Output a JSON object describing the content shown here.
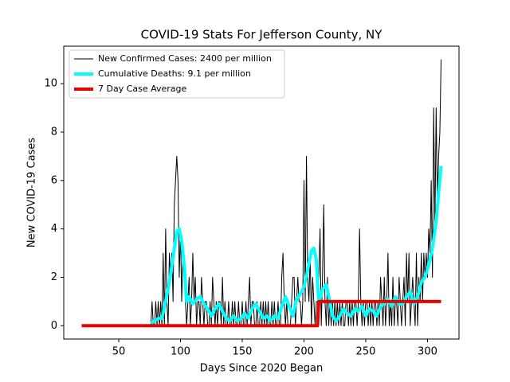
{
  "chart_data": {
    "type": "line",
    "title": "COVID-19 Stats For Jefferson County, NY",
    "x_label": "Days Since 2020 Began",
    "y_label": "New COVID-19 Cases",
    "xlim": [
      5.5,
      325.5
    ],
    "ylim": [
      -0.55,
      11.55
    ],
    "xticks": [
      50,
      100,
      150,
      200,
      250,
      300
    ],
    "yticks": [
      0,
      2,
      4,
      6,
      8,
      10
    ],
    "legend": "upper left",
    "series": [
      {
        "name": "New Confirmed Cases: 2400 per million",
        "color": "#000000",
        "width": 1,
        "x": [
          76,
          77,
          78,
          79,
          80,
          81,
          82,
          83,
          84,
          85,
          86,
          87,
          88,
          89,
          90,
          91,
          92,
          93,
          94,
          95,
          96,
          97,
          98,
          99,
          100,
          101,
          102,
          103,
          104,
          105,
          106,
          107,
          108,
          109,
          110,
          111,
          112,
          113,
          114,
          115,
          116,
          117,
          118,
          119,
          120,
          121,
          122,
          123,
          124,
          125,
          126,
          127,
          128,
          129,
          130,
          131,
          132,
          133,
          134,
          135,
          136,
          137,
          138,
          139,
          140,
          141,
          142,
          143,
          144,
          145,
          146,
          147,
          148,
          149,
          150,
          151,
          152,
          153,
          154,
          155,
          156,
          157,
          158,
          159,
          160,
          161,
          162,
          163,
          164,
          165,
          166,
          167,
          168,
          169,
          170,
          171,
          172,
          173,
          174,
          175,
          176,
          177,
          178,
          179,
          180,
          181,
          182,
          183,
          184,
          185,
          186,
          187,
          188,
          189,
          190,
          191,
          192,
          193,
          194,
          195,
          196,
          197,
          198,
          199,
          200,
          201,
          202,
          203,
          204,
          205,
          206,
          207,
          208,
          209,
          210,
          211,
          212,
          213,
          214,
          215,
          216,
          217,
          218,
          219,
          220,
          221,
          222,
          223,
          224,
          225,
          226,
          227,
          228,
          229,
          230,
          231,
          232,
          233,
          234,
          235,
          236,
          237,
          238,
          239,
          240,
          241,
          242,
          243,
          244,
          245,
          246,
          247,
          248,
          249,
          250,
          251,
          252,
          253,
          254,
          255,
          256,
          257,
          258,
          259,
          260,
          261,
          262,
          263,
          264,
          265,
          266,
          267,
          268,
          269,
          270,
          271,
          272,
          273,
          274,
          275,
          276,
          277,
          278,
          279,
          280,
          281,
          282,
          283,
          284,
          285,
          286,
          287,
          288,
          289,
          290,
          291,
          292,
          293,
          294,
          295,
          296,
          297,
          298,
          299,
          300,
          301,
          302,
          303,
          304,
          305,
          306,
          307,
          308,
          309,
          310,
          311
        ],
        "values": [
          0,
          1,
          0,
          0,
          1,
          0,
          1,
          0,
          1,
          0,
          3,
          0,
          4,
          1,
          0,
          3,
          2,
          3,
          1,
          5,
          6,
          7,
          6,
          2,
          4,
          1,
          3,
          2,
          1,
          0,
          1,
          2,
          0,
          1,
          3,
          1,
          2,
          0,
          1,
          1,
          0,
          2,
          1,
          0,
          1,
          1,
          0,
          0,
          1,
          0,
          2,
          1,
          0,
          1,
          0,
          1,
          1,
          0,
          2,
          0,
          1,
          0,
          0,
          1,
          0,
          0,
          1,
          0,
          1,
          0,
          0,
          1,
          0,
          0,
          1,
          0,
          0,
          1,
          0,
          1,
          2,
          0,
          1,
          1,
          0,
          0,
          1,
          0,
          0,
          1,
          0,
          1,
          0,
          1,
          0,
          1,
          0,
          0,
          1,
          0,
          1,
          0,
          0,
          1,
          0,
          0,
          2,
          3,
          1,
          0,
          1,
          0,
          0,
          0,
          1,
          2,
          2,
          0,
          1,
          2,
          1,
          1,
          0,
          1,
          6,
          1,
          7,
          2,
          1,
          3,
          0,
          2,
          1,
          0,
          1,
          1,
          2,
          4,
          0,
          2,
          5,
          1,
          0,
          2,
          0,
          1,
          0,
          1,
          0,
          1,
          0,
          1,
          0,
          1,
          0,
          1,
          0,
          0,
          1,
          1,
          0,
          1,
          0,
          1,
          0,
          1,
          1,
          0,
          1,
          4,
          1,
          0,
          1,
          0,
          1,
          1,
          0,
          1,
          0,
          1,
          0,
          1,
          1,
          0,
          1,
          0,
          2,
          1,
          0,
          2,
          0,
          1,
          3,
          0,
          1,
          0,
          2,
          0,
          1,
          1,
          0,
          2,
          1,
          0,
          1,
          2,
          0,
          3,
          1,
          3,
          0,
          1,
          2,
          1,
          0,
          3,
          0,
          2,
          1,
          3,
          1,
          3,
          2,
          3,
          2,
          4,
          3,
          6,
          2,
          9,
          4,
          9,
          5,
          7,
          8,
          11
        ]
      },
      {
        "name": "Cumulative Deaths: 9.1 per million",
        "color": "#00ffff",
        "width": 4,
        "x": [
          76,
          79,
          82,
          85,
          88,
          91,
          94,
          97,
          99,
          101,
          103,
          105,
          107,
          110,
          113,
          116,
          119,
          122,
          125,
          128,
          131,
          134,
          137,
          140,
          143,
          146,
          149,
          152,
          155,
          158,
          161,
          164,
          167,
          170,
          173,
          176,
          179,
          182,
          185,
          188,
          191,
          194,
          197,
          200,
          203,
          206,
          208,
          210,
          212,
          215,
          218,
          221,
          223,
          226,
          229,
          232,
          235,
          238,
          241,
          244,
          247,
          250,
          253,
          256,
          259,
          262,
          265,
          268,
          271,
          274,
          277,
          280,
          283,
          286,
          289,
          292,
          295,
          298,
          301,
          304,
          307,
          309,
          311
        ],
        "values": [
          0.1,
          0.2,
          0.3,
          0.3,
          1,
          1.8,
          2.8,
          3.9,
          4,
          3.5,
          2.5,
          1,
          1.2,
          0.9,
          1.1,
          1.2,
          0.9,
          0.7,
          0.4,
          0.7,
          0.9,
          0.6,
          0.3,
          0.2,
          0.4,
          0.2,
          0.3,
          0.5,
          0.3,
          0.7,
          0.9,
          0.6,
          0.3,
          0.4,
          0.2,
          0.4,
          0.3,
          0.8,
          1.2,
          0.8,
          0.4,
          1.1,
          1.3,
          1.6,
          2.3,
          3.1,
          3.2,
          2.7,
          0.9,
          1.5,
          1.7,
          1,
          0.4,
          0.2,
          0.4,
          0.7,
          0.5,
          0.4,
          0.7,
          0.6,
          0.8,
          0.4,
          0.7,
          0.6,
          0.4,
          0.8,
          0.9,
          1.1,
          0.8,
          1.2,
          0.9,
          0.9,
          1.2,
          1.4,
          0.9,
          1.2,
          1.8,
          2,
          2.5,
          3.2,
          4.3,
          5.5,
          6.6
        ]
      },
      {
        "name": "7 Day Case Average",
        "color": "#ee0000",
        "width": 4,
        "x": [
          20,
          211,
          212,
          311
        ],
        "values": [
          0,
          0,
          1,
          1
        ]
      }
    ]
  }
}
